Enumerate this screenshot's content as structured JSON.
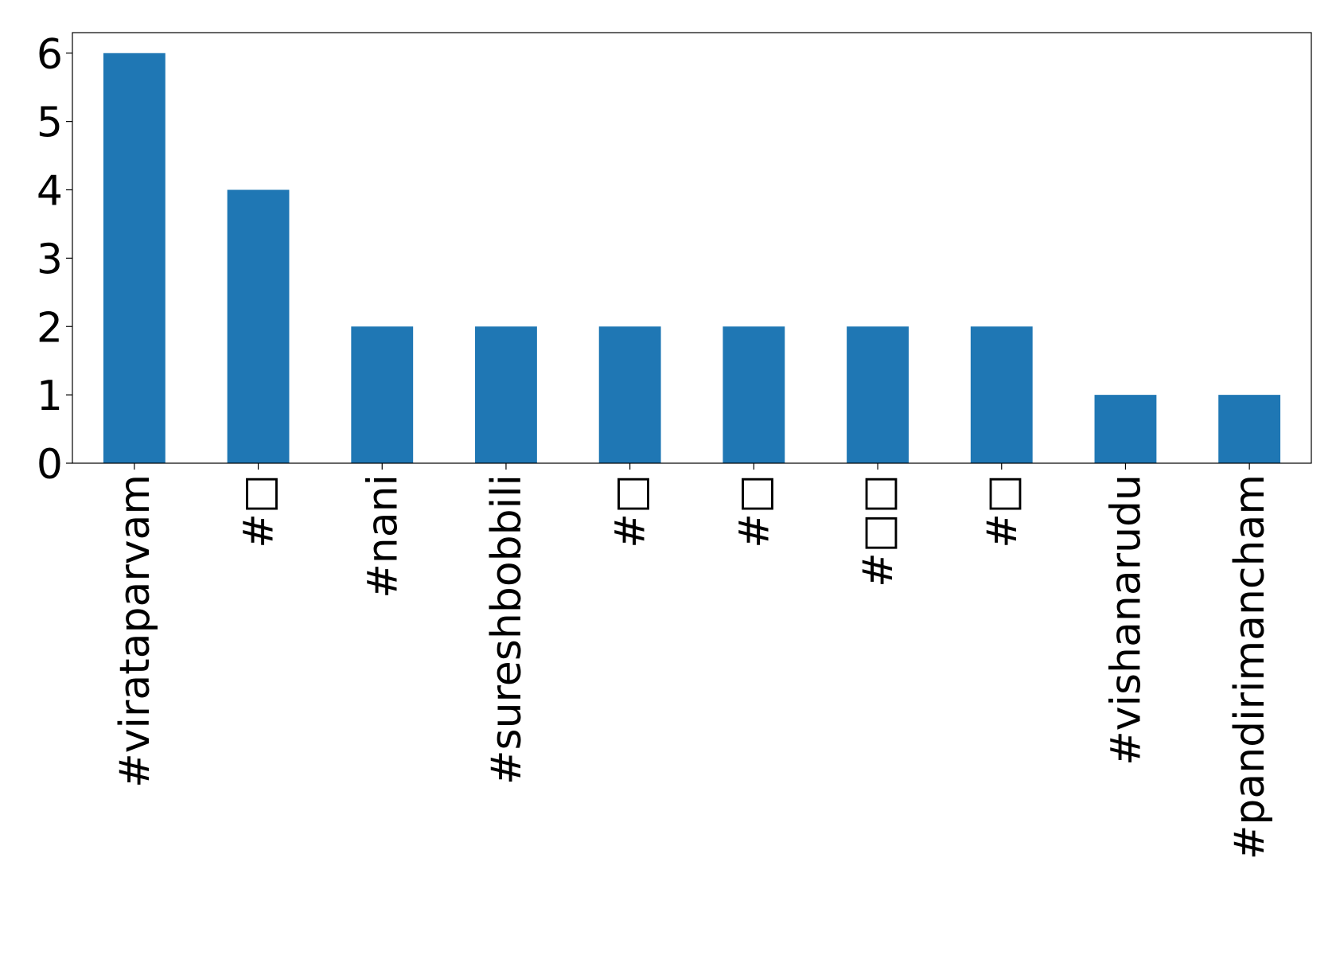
{
  "chart_data": {
    "type": "bar",
    "categories": [
      "#viratаparvam",
      "#□",
      "#nani",
      "#sureshbobbili",
      "#□",
      "#□",
      "#□□",
      "#□",
      "#vishanarudu",
      "#pandirimancham"
    ],
    "values": [
      6,
      4,
      2,
      2,
      2,
      2,
      2,
      2,
      1,
      1
    ],
    "color": "#1f77b4",
    "ylim": [
      0,
      6.3
    ],
    "yticks": [
      0,
      1,
      2,
      3,
      4,
      5,
      6
    ],
    "grid": false
  }
}
